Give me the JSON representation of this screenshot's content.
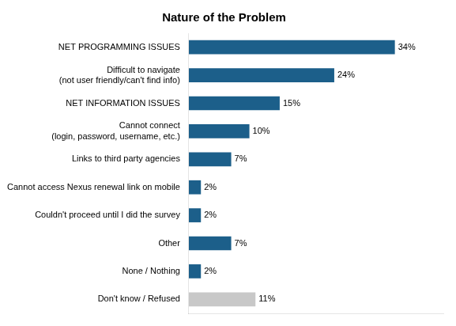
{
  "chart_data": {
    "type": "bar",
    "orientation": "horizontal",
    "title": "Nature of the Problem",
    "categories": [
      "Don't know / Refused",
      "None / Nothing",
      "Other",
      "Couldn't proceed until I did the survey",
      "Cannot access Nexus renewal link on mobile",
      "Links to third party agencies",
      "Cannot connect\n(login, password, username, etc.)",
      "NET INFORMATION ISSUES",
      "Difficult to navigate\n(not user friendly/can't find info)",
      "NET PROGRAMMING ISSUES"
    ],
    "values": [
      11,
      2,
      7,
      2,
      2,
      7,
      10,
      15,
      24,
      34
    ],
    "value_labels": [
      "11%",
      "2%",
      "7%",
      "2%",
      "2%",
      "7%",
      "10%",
      "15%",
      "24%",
      "34%"
    ],
    "colors": [
      "#c8c8c8",
      "#1c5f8a",
      "#1c5f8a",
      "#1c5f8a",
      "#1c5f8a",
      "#1c5f8a",
      "#1c5f8a",
      "#1c5f8a",
      "#1c5f8a",
      "#1c5f8a"
    ],
    "xlim": [
      0,
      42
    ],
    "grid": false,
    "data_labels": true,
    "tick_labels": "y"
  }
}
